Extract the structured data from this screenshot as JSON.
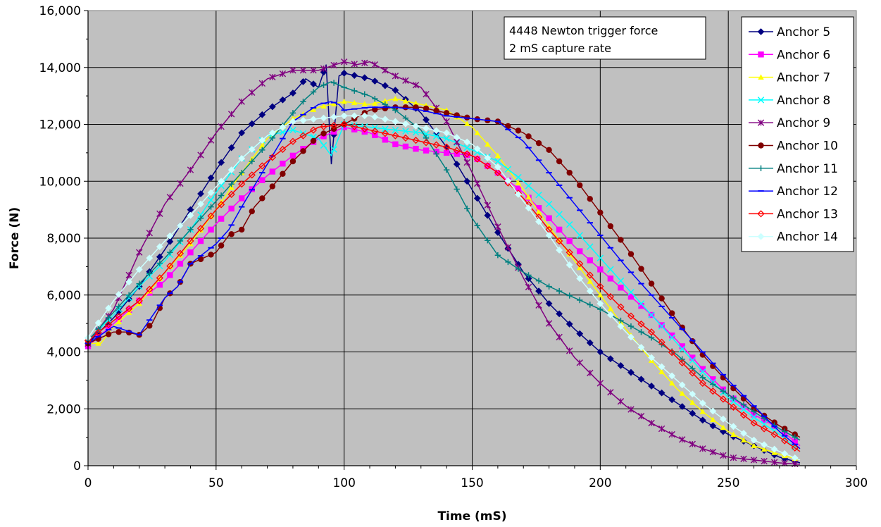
{
  "chart_data": {
    "type": "line",
    "xlabel": "Time (mS)",
    "ylabel": "Force (N)",
    "xlim": [
      0,
      300
    ],
    "ylim": [
      0,
      16000
    ],
    "x_ticks": [
      0,
      50,
      100,
      150,
      200,
      250,
      300
    ],
    "y_ticks": [
      0,
      2000,
      4000,
      6000,
      8000,
      10000,
      12000,
      14000,
      16000
    ],
    "x_tick_labels": [
      "0",
      "50",
      "100",
      "150",
      "200",
      "250",
      "300"
    ],
    "y_tick_labels": [
      "0",
      "2,000",
      "4,000",
      "6,000",
      "8,000",
      "10,000",
      "12,000",
      "14,000",
      "16,000"
    ],
    "grid": true,
    "plot_background": "#c0c0c0",
    "legend_position": "right",
    "annotations": [
      "4448 Newton trigger force",
      "2 mS capture rate"
    ],
    "series": [
      {
        "name": "Anchor 5",
        "color": "#000080",
        "marker": "diamond",
        "x": [
          0,
          10,
          20,
          30,
          40,
          50,
          60,
          70,
          80,
          85,
          90,
          93,
          95,
          98,
          100,
          110,
          120,
          130,
          140,
          150,
          160,
          170,
          180,
          190,
          200,
          210,
          220,
          230,
          240,
          250,
          260,
          270,
          278
        ],
        "y": [
          4300,
          5200,
          6300,
          7600,
          9000,
          10400,
          11700,
          12500,
          13100,
          13600,
          13300,
          14100,
          10600,
          13700,
          13800,
          13600,
          13200,
          12400,
          11200,
          9700,
          8200,
          6800,
          5700,
          4800,
          4000,
          3400,
          2800,
          2200,
          1600,
          1100,
          700,
          300,
          100
        ]
      },
      {
        "name": "Anchor 6",
        "color": "#ff00ff",
        "marker": "square",
        "x": [
          0,
          10,
          20,
          30,
          40,
          50,
          60,
          70,
          80,
          90,
          100,
          110,
          120,
          130,
          140,
          150,
          160,
          170,
          180,
          190,
          200,
          210,
          220,
          230,
          240,
          250,
          260,
          270,
          278
        ],
        "y": [
          4200,
          5000,
          5800,
          6500,
          7500,
          8500,
          9400,
          10200,
          10900,
          11500,
          11900,
          11700,
          11300,
          11100,
          11000,
          10900,
          10300,
          9600,
          8700,
          7700,
          6900,
          6100,
          5300,
          4400,
          3400,
          2500,
          1800,
          1300,
          700
        ]
      },
      {
        "name": "Anchor 7",
        "color": "#ffff00",
        "marker": "triangle",
        "x": [
          0,
          5,
          10,
          20,
          30,
          40,
          50,
          60,
          70,
          80,
          90,
          100,
          110,
          120,
          130,
          140,
          150,
          160,
          170,
          180,
          190,
          200,
          210,
          220,
          230,
          240,
          250,
          260,
          270,
          278
        ],
        "y": [
          4300,
          4300,
          4900,
          5700,
          6800,
          7800,
          9000,
          10300,
          11500,
          12200,
          12600,
          12800,
          12700,
          12900,
          12700,
          12500,
          11900,
          10900,
          9700,
          8400,
          7200,
          6000,
          4800,
          3700,
          2700,
          1900,
          1200,
          700,
          400,
          200
        ]
      },
      {
        "name": "Anchor 8",
        "color": "#00ffff",
        "marker": "x",
        "x": [
          0,
          10,
          20,
          30,
          40,
          50,
          60,
          70,
          80,
          90,
          95,
          100,
          110,
          120,
          130,
          140,
          150,
          160,
          170,
          180,
          190,
          200,
          210,
          220,
          230,
          240,
          250,
          260,
          270,
          278
        ],
        "y": [
          4400,
          5300,
          6300,
          7200,
          8300,
          9600,
          10800,
          11600,
          11800,
          11500,
          10900,
          12000,
          11900,
          11800,
          11700,
          11500,
          11100,
          10700,
          10000,
          9200,
          8300,
          7300,
          6300,
          5300,
          4300,
          3300,
          2400,
          1700,
          1100,
          500
        ]
      },
      {
        "name": "Anchor 9",
        "color": "#800080",
        "marker": "star",
        "x": [
          0,
          10,
          20,
          30,
          40,
          50,
          60,
          70,
          80,
          90,
          100,
          105,
          110,
          120,
          130,
          140,
          150,
          160,
          170,
          180,
          190,
          200,
          210,
          220,
          230,
          240,
          250,
          260,
          270,
          278
        ],
        "y": [
          4300,
          5500,
          7500,
          9200,
          10400,
          11700,
          12800,
          13600,
          13900,
          13900,
          14200,
          14100,
          14200,
          13700,
          13300,
          12100,
          10300,
          8400,
          6600,
          5000,
          3800,
          2900,
          2100,
          1500,
          1000,
          600,
          300,
          200,
          100,
          50
        ]
      },
      {
        "name": "Anchor 10",
        "color": "#800000",
        "marker": "circle",
        "x": [
          0,
          10,
          15,
          20,
          25,
          30,
          35,
          40,
          50,
          55,
          60,
          65,
          70,
          80,
          90,
          100,
          110,
          120,
          130,
          140,
          150,
          160,
          170,
          180,
          190,
          200,
          210,
          220,
          230,
          240,
          250,
          260,
          270,
          278
        ],
        "y": [
          4300,
          4700,
          4700,
          4600,
          5000,
          5900,
          6300,
          7100,
          7500,
          8100,
          8300,
          9100,
          9600,
          10700,
          11600,
          12000,
          12500,
          12600,
          12600,
          12400,
          12200,
          12100,
          11700,
          11100,
          10100,
          8900,
          7700,
          6400,
          5100,
          3900,
          2900,
          2000,
          1400,
          1000
        ]
      },
      {
        "name": "Anchor 11",
        "color": "#008080",
        "marker": "plus",
        "x": [
          0,
          10,
          20,
          30,
          40,
          50,
          60,
          70,
          80,
          85,
          90,
          95,
          100,
          110,
          120,
          130,
          140,
          150,
          160,
          170,
          180,
          190,
          200,
          210,
          220,
          230,
          240,
          250,
          260,
          270,
          278
        ],
        "y": [
          4400,
          5400,
          6400,
          7300,
          8300,
          9300,
          10300,
          11300,
          12400,
          12900,
          13300,
          13500,
          13300,
          13000,
          12500,
          11800,
          10400,
          8700,
          7400,
          6800,
          6300,
          5900,
          5500,
          5000,
          4500,
          3900,
          3100,
          2500,
          1900,
          1300,
          900
        ]
      },
      {
        "name": "Anchor 12",
        "color": "#0000ff",
        "marker": "dash",
        "x": [
          0,
          10,
          20,
          30,
          35,
          40,
          50,
          55,
          60,
          70,
          80,
          90,
          95,
          98,
          100,
          110,
          120,
          130,
          140,
          150,
          160,
          170,
          180,
          190,
          200,
          210,
          220,
          230,
          240,
          250,
          260,
          270,
          278
        ],
        "y": [
          4300,
          4900,
          4600,
          5900,
          6300,
          7100,
          7800,
          8300,
          9100,
          10600,
          12100,
          12700,
          12800,
          12700,
          12500,
          12600,
          12600,
          12500,
          12300,
          12200,
          12100,
          11400,
          10300,
          9200,
          8100,
          7000,
          6000,
          5000,
          4000,
          3000,
          2100,
          1200,
          600
        ]
      },
      {
        "name": "Anchor 13",
        "color": "#ff0000",
        "marker": "open-diamond",
        "x": [
          0,
          10,
          20,
          30,
          40,
          50,
          60,
          70,
          80,
          90,
          100,
          110,
          120,
          130,
          140,
          150,
          160,
          170,
          180,
          190,
          200,
          210,
          220,
          230,
          240,
          250,
          260,
          270,
          278
        ],
        "y": [
          4400,
          5100,
          5800,
          6800,
          7900,
          9000,
          9900,
          10700,
          11400,
          11900,
          12000,
          11800,
          11600,
          11400,
          11200,
          10900,
          10300,
          9400,
          8300,
          7300,
          6300,
          5400,
          4700,
          3800,
          2900,
          2200,
          1500,
          1000,
          500
        ]
      },
      {
        "name": "Anchor 14",
        "color": "#ccffff",
        "marker": "diamond",
        "x": [
          0,
          10,
          20,
          30,
          40,
          50,
          60,
          70,
          80,
          90,
          100,
          110,
          120,
          130,
          140,
          150,
          160,
          170,
          180,
          190,
          200,
          210,
          220,
          230,
          240,
          250,
          260,
          270,
          278
        ],
        "y": [
          4500,
          5800,
          6900,
          7900,
          8800,
          9800,
          10800,
          11600,
          12100,
          12200,
          12300,
          12300,
          12100,
          11900,
          11700,
          11300,
          10500,
          9300,
          8100,
          6800,
          5700,
          4700,
          3800,
          3000,
          2200,
          1500,
          900,
          500,
          200
        ]
      }
    ]
  }
}
